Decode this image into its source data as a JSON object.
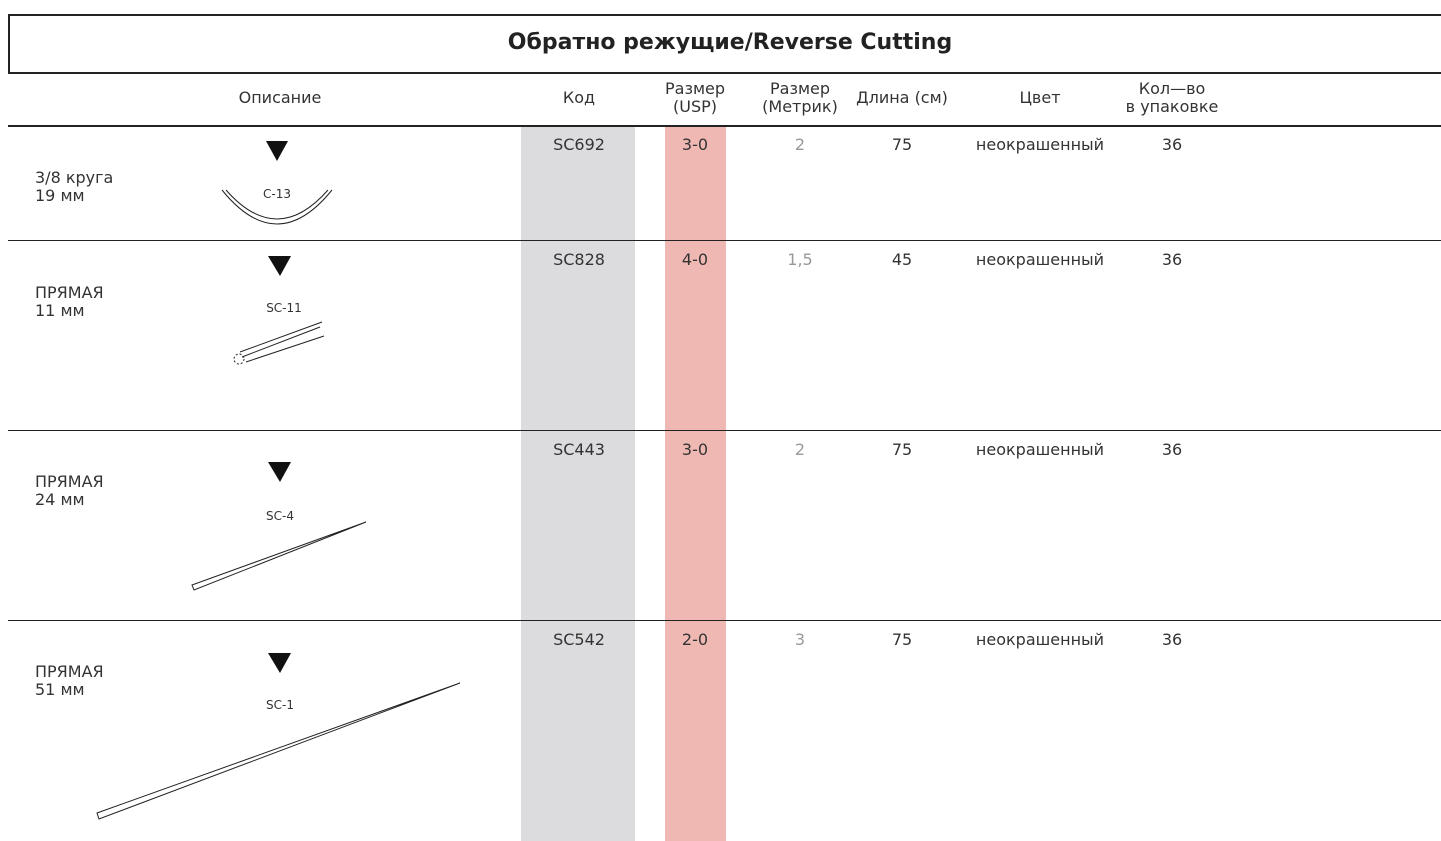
{
  "title": "Обратно режущие/Reverse Cutting",
  "headers": [
    [
      "Описание"
    ],
    [
      "Код"
    ],
    [
      "Размер",
      "(USP)"
    ],
    [
      "Размер",
      "(Метрик)"
    ],
    [
      "Длина (см)"
    ],
    [
      "Цвет"
    ],
    [
      "Кол—во",
      "в упаковке"
    ]
  ],
  "rows": [
    {
      "description": [
        "3/8 круга",
        "19 мм"
      ],
      "needle": "C-13",
      "code": "SC692",
      "usp": "3-0",
      "metric": "2",
      "length": "75",
      "color": "неокрашенный",
      "qty": "36"
    },
    {
      "description": [
        "ПРЯМАЯ",
        "11 мм"
      ],
      "needle": "SC-11",
      "code": "SC828",
      "usp": "4-0",
      "metric": "1,5",
      "length": "45",
      "color": "неокрашенный",
      "qty": "36"
    },
    {
      "description": [
        "ПРЯМАЯ",
        "24 мм"
      ],
      "needle": "SC-4",
      "code": "SC443",
      "usp": "3-0",
      "metric": "2",
      "length": "75",
      "color": "неокрашенный",
      "qty": "36"
    },
    {
      "description": [
        "ПРЯМАЯ",
        "51 мм"
      ],
      "needle": "SC-1",
      "code": "SC542",
      "usp": "2-0",
      "metric": "3",
      "length": "75",
      "color": "неокрашенный",
      "qty": "36"
    }
  ]
}
